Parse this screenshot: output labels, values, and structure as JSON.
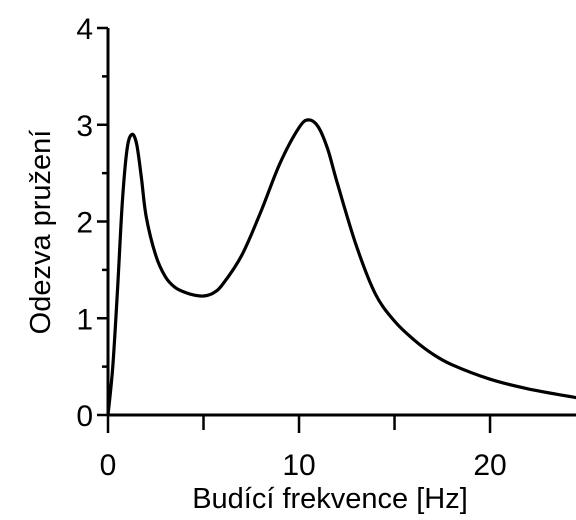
{
  "chart_data": {
    "type": "line",
    "title": "",
    "xlabel": "Budící frekvence [Hz]",
    "ylabel": "Odezva pružení",
    "xlim": [
      0,
      24.5
    ],
    "ylim": [
      0,
      4
    ],
    "xticks": [
      0,
      10,
      20
    ],
    "yticks": [
      0,
      1,
      2,
      3,
      4
    ],
    "grid": false,
    "legend": "none",
    "line_color": "#000000",
    "series": [
      {
        "x": [
          0,
          0.25,
          0.5,
          0.75,
          1.0,
          1.25,
          1.5,
          1.75,
          2.0,
          2.5,
          3.0,
          3.5,
          4.0,
          4.5,
          5.0,
          5.5,
          6.0,
          7.0,
          8.0,
          9.0,
          10.0,
          10.5,
          11.0,
          11.5,
          12.0,
          13.0,
          14.0,
          15.0,
          16.0,
          17.0,
          18.0,
          20.0,
          22.0,
          24.5
        ],
        "y": [
          0,
          0.5,
          1.3,
          2.2,
          2.75,
          2.9,
          2.8,
          2.45,
          2.05,
          1.65,
          1.43,
          1.32,
          1.27,
          1.24,
          1.23,
          1.26,
          1.35,
          1.65,
          2.1,
          2.6,
          2.97,
          3.05,
          2.98,
          2.75,
          2.4,
          1.75,
          1.25,
          0.97,
          0.78,
          0.63,
          0.52,
          0.37,
          0.27,
          0.18
        ]
      }
    ]
  }
}
